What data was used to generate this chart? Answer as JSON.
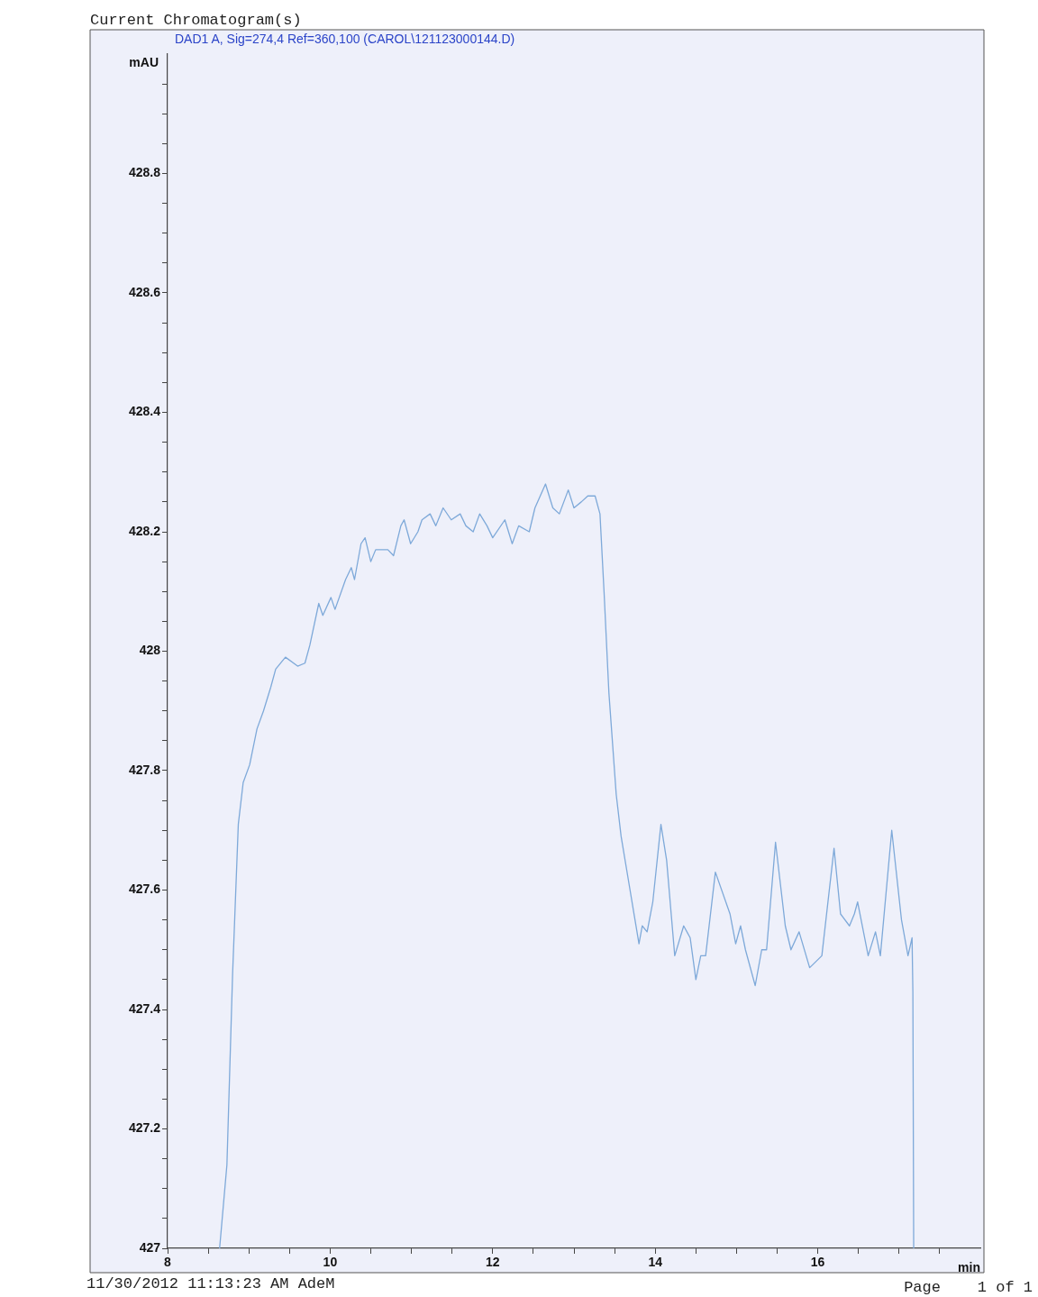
{
  "chart_data": {
    "type": "line",
    "title": "Current Chromatogram(s)",
    "subtitle": "DAD1 A, Sig=274,4 Ref=360,100 (CAROL\\121123000144.D)",
    "xlabel": "min",
    "ylabel": "mAU",
    "annotations": [
      "11/30/2012 11:13:23 AM AdeM",
      "Page    1 of 1"
    ],
    "xlim": [
      8,
      18
    ],
    "ylim": [
      427,
      429
    ],
    "xticks": [
      8,
      {
        "value": 8.5,
        "label": null
      },
      {
        "value": 9,
        "label": null
      },
      {
        "value": 9.5,
        "label": null
      },
      10,
      {
        "value": 10.5,
        "label": null
      },
      {
        "value": 11,
        "label": null
      },
      {
        "value": 11.5,
        "label": null
      },
      12,
      {
        "value": 12.5,
        "label": null
      },
      {
        "value": 13,
        "label": null
      },
      {
        "value": 13.5,
        "label": null
      },
      14,
      {
        "value": 14.5,
        "label": null
      },
      {
        "value": 15,
        "label": null
      },
      {
        "value": 15.5,
        "label": null
      },
      16,
      {
        "value": 16.5,
        "label": null
      },
      {
        "value": 17,
        "label": null
      },
      {
        "value": 17.5,
        "label": null
      }
    ],
    "yticks": [
      427,
      {
        "value": 427.05,
        "label": null
      },
      {
        "value": 427.1,
        "label": null
      },
      {
        "value": 427.15,
        "label": null
      },
      427.2,
      {
        "value": 427.25,
        "label": null
      },
      {
        "value": 427.3,
        "label": null
      },
      {
        "value": 427.35,
        "label": null
      },
      427.4,
      {
        "value": 427.45,
        "label": null
      },
      {
        "value": 427.5,
        "label": null
      },
      {
        "value": 427.55,
        "label": null
      },
      427.6,
      {
        "value": 427.65,
        "label": null
      },
      {
        "value": 427.7,
        "label": null
      },
      {
        "value": 427.75,
        "label": null
      },
      427.8,
      {
        "value": 427.85,
        "label": null
      },
      {
        "value": 427.9,
        "label": null
      },
      {
        "value": 427.95,
        "label": null
      },
      428,
      {
        "value": 428.05,
        "label": null
      },
      {
        "value": 428.1,
        "label": null
      },
      {
        "value": 428.15,
        "label": null
      },
      428.2,
      {
        "value": 428.25,
        "label": null
      },
      {
        "value": 428.3,
        "label": null
      },
      {
        "value": 428.35,
        "label": null
      },
      428.4,
      {
        "value": 428.45,
        "label": null
      },
      {
        "value": 428.5,
        "label": null
      },
      {
        "value": 428.55,
        "label": null
      },
      428.6,
      {
        "value": 428.65,
        "label": null
      },
      {
        "value": 428.7,
        "label": null
      },
      {
        "value": 428.75,
        "label": null
      },
      428.8,
      {
        "value": 428.85,
        "label": null
      },
      {
        "value": 428.9,
        "label": null
      },
      {
        "value": 428.95,
        "label": null
      }
    ],
    "marker": "none",
    "line_style": "solid",
    "series": [
      {
        "color": "#7ea9d9",
        "x": [
          8.64,
          8.73,
          8.8,
          8.87,
          8.93,
          9.01,
          9.1,
          9.18,
          9.27,
          9.33,
          9.45,
          9.6,
          9.69,
          9.75,
          9.86,
          9.91,
          10.01,
          10.06,
          10.19,
          10.26,
          10.3,
          10.38,
          10.43,
          10.5,
          10.56,
          10.71,
          10.78,
          10.87,
          10.91,
          10.99,
          11.08,
          11.13,
          11.23,
          11.3,
          11.39,
          11.49,
          11.6,
          11.67,
          11.76,
          11.84,
          11.93,
          12.0,
          12.15,
          12.24,
          12.32,
          12.45,
          12.52,
          12.65,
          12.74,
          12.82,
          12.93,
          13.0,
          13.09,
          13.17,
          13.26,
          13.32,
          13.37,
          13.43,
          13.52,
          13.58,
          13.69,
          13.8,
          13.84,
          13.9,
          13.97,
          14.07,
          14.14,
          14.24,
          14.35,
          14.43,
          14.5,
          14.56,
          14.62,
          14.74,
          14.92,
          14.99,
          15.05,
          15.11,
          15.23,
          15.31,
          15.37,
          15.48,
          15.6,
          15.67,
          15.77,
          15.9,
          16.05,
          16.2,
          16.28,
          16.39,
          16.45,
          16.49,
          16.62,
          16.71,
          16.77,
          16.91,
          17.03,
          17.11,
          17.16,
          17.17,
          17.18
        ],
        "values": [
          427.0,
          427.14,
          427.46,
          427.71,
          427.78,
          427.81,
          427.87,
          427.9,
          427.94,
          427.97,
          427.99,
          427.975,
          427.98,
          428.01,
          428.08,
          428.06,
          428.09,
          428.07,
          428.12,
          428.14,
          428.12,
          428.18,
          428.19,
          428.15,
          428.17,
          428.17,
          428.16,
          428.21,
          428.22,
          428.18,
          428.2,
          428.22,
          428.23,
          428.21,
          428.24,
          428.22,
          428.23,
          428.21,
          428.2,
          428.23,
          428.21,
          428.19,
          428.22,
          428.18,
          428.21,
          428.2,
          428.24,
          428.28,
          428.24,
          428.23,
          428.27,
          428.24,
          428.25,
          428.26,
          428.26,
          428.23,
          428.1,
          427.93,
          427.76,
          427.69,
          427.6,
          427.51,
          427.54,
          427.53,
          427.58,
          427.71,
          427.65,
          427.49,
          427.54,
          427.52,
          427.45,
          427.49,
          427.49,
          427.63,
          427.56,
          427.51,
          427.54,
          427.5,
          427.44,
          427.5,
          427.5,
          427.68,
          427.54,
          427.5,
          427.53,
          427.47,
          427.49,
          427.67,
          427.56,
          427.54,
          427.56,
          427.58,
          427.49,
          427.53,
          427.49,
          427.7,
          427.55,
          427.49,
          427.52,
          427.43,
          427.0
        ]
      }
    ]
  }
}
